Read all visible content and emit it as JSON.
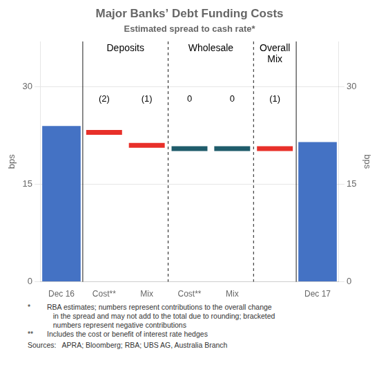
{
  "chart_data": {
    "type": "bar",
    "title": "Major Banks’ Debt Funding Costs",
    "subtitle": "Estimated spread to cash rate*",
    "ylabel": "bps",
    "y2label": "bps",
    "categories": [
      "Dec 16",
      "Cost**",
      "Mix",
      "Cost**",
      "Mix",
      null,
      "Dec 17"
    ],
    "series": [
      {
        "type": "bar",
        "color": "#4472C4",
        "values": [
          24.0,
          null,
          null,
          null,
          null,
          null,
          21.5
        ]
      },
      {
        "type": "line",
        "marker": "line",
        "line_style": "none",
        "colors": [
          null,
          "#E8302A",
          "#E8302A",
          "#1F5C6B",
          "#1F5C6B",
          "#E8302A",
          null
        ],
        "values": [
          null,
          23.0,
          21.0,
          20.5,
          20.5,
          20.5,
          null
        ],
        "annotations": [
          null,
          "(2)",
          "(1)",
          "0",
          "0",
          "(1)",
          null
        ]
      }
    ],
    "ylim": [
      0,
      37
    ],
    "yticks": [
      0,
      15,
      30
    ],
    "y2lim": [
      0,
      37
    ],
    "y2ticks": [
      0,
      15,
      30
    ],
    "grid": true,
    "section_labels": [
      "Deposits",
      "Wholesale",
      "Overall\nMix"
    ],
    "footnotes": [
      {
        "mark": "*",
        "text": "RBA estimates; numbers represent contributions to the overall change\n   in the spread and may not add to the total due to rounding; bracketed\n   numbers represent negative contributions"
      },
      {
        "mark": "**",
        "text": "Includes the cost or benefit of interest rate hedges"
      }
    ],
    "sources": "Sources:   APRA; Bloomberg; RBA; UBS AG, Australia Branch"
  }
}
